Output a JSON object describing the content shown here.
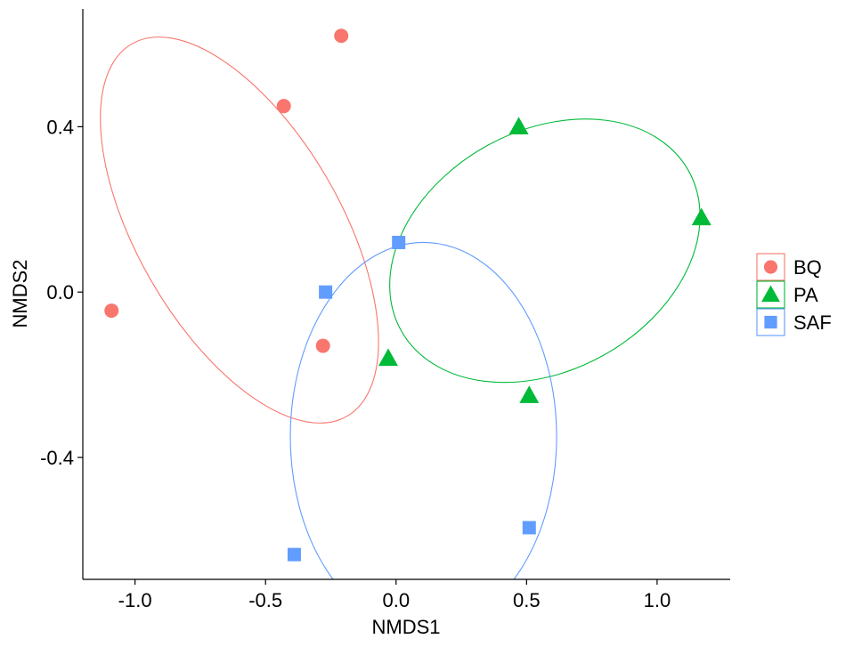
{
  "chart_data": {
    "type": "scatter",
    "title": "",
    "xlabel": "NMDS1",
    "ylabel": "NMDS2",
    "xlim": [
      -1.2,
      1.28
    ],
    "ylim": [
      -0.695,
      0.685
    ],
    "xticks": [
      -1.0,
      -0.5,
      0.0,
      0.5,
      1.0
    ],
    "xtick_labels": [
      "-1.0",
      "-0.5",
      "0.0",
      "0.5",
      "1.0"
    ],
    "yticks": [
      -0.4,
      0.0,
      0.4
    ],
    "ytick_labels": [
      "-0.4",
      "0.0",
      "0.4"
    ],
    "grid": false,
    "legend_position": "right",
    "series": [
      {
        "name": "BQ",
        "marker": "circle",
        "color": "#F8766D",
        "points": [
          [
            -1.09,
            -0.045
          ],
          [
            -0.43,
            0.45
          ],
          [
            -0.21,
            0.62
          ],
          [
            -0.28,
            -0.13
          ]
        ],
        "ellipse": {
          "cx": -0.6,
          "cy": 0.15,
          "rx": 0.39,
          "ry": 0.52,
          "angle_deg": 30
        }
      },
      {
        "name": "PA",
        "marker": "triangle",
        "color": "#00BA38",
        "points": [
          [
            0.47,
            0.4
          ],
          [
            1.17,
            0.18
          ],
          [
            -0.03,
            -0.16
          ],
          [
            0.51,
            -0.25
          ]
        ],
        "ellipse": {
          "cx": 0.57,
          "cy": 0.1,
          "rx": 0.63,
          "ry": 0.29,
          "angle_deg": 29
        }
      },
      {
        "name": "SAF",
        "marker": "square",
        "color": "#619CFF",
        "points": [
          [
            0.01,
            0.12
          ],
          [
            -0.27,
            0.0
          ],
          [
            -0.39,
            -0.635
          ],
          [
            0.51,
            -0.57
          ]
        ],
        "ellipse": {
          "cx": 0.105,
          "cy": -0.35,
          "rx": 0.51,
          "ry": 0.47,
          "angle_deg": 0
        }
      }
    ]
  }
}
